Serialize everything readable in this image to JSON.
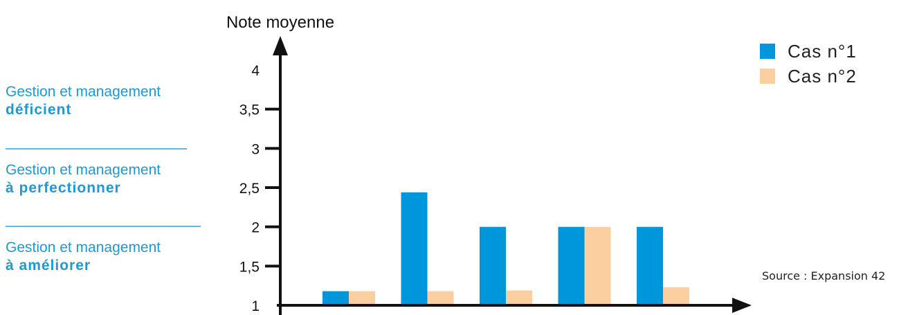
{
  "chart_data": {
    "type": "bar",
    "ylabel": "Note moyenne",
    "xlabel": "",
    "ylim": [
      1,
      4
    ],
    "y_ticks": [
      "1",
      "1,5",
      "2",
      "2,5",
      "3",
      "3,5",
      "4"
    ],
    "y_tick_values": [
      1,
      1.5,
      2,
      2.5,
      3,
      3.5,
      4
    ],
    "categories": [
      "",
      "",
      "",
      "",
      ""
    ],
    "series": [
      {
        "name": "Cas n°1",
        "color": "#0096db",
        "values": [
          1.18,
          2.44,
          2.0,
          2.0,
          2.0
        ]
      },
      {
        "name": "Cas n°2",
        "color": "#fbcf9f",
        "values": [
          1.18,
          1.18,
          1.19,
          2.0,
          1.23
        ]
      }
    ],
    "legend_placement": "top-right",
    "grid": false
  },
  "zones": [
    {
      "line1": "Gestion et management",
      "line2": "déficient"
    },
    {
      "line1": "Gestion et management",
      "line2": "à perfectionner"
    },
    {
      "line1": "Gestion et management",
      "line2": "à améliorer"
    }
  ],
  "colors": {
    "zone_text": "#1a9ad6",
    "divider": "#64b7e4",
    "axis": "#111111"
  },
  "source": "Source : Expansion 42"
}
